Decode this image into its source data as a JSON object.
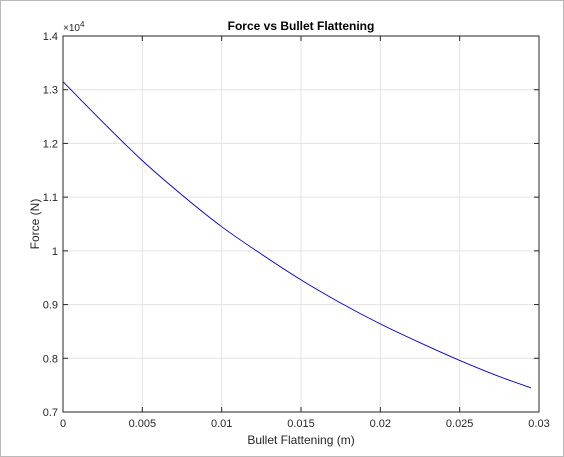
{
  "chart_data": {
    "type": "line",
    "title": "Force vs Bullet Flattening",
    "xlabel": "Bullet Flattening (m)",
    "ylabel": "Force (N)",
    "y_multiplier_label": "×10⁴",
    "y_multiplier_base": "×10",
    "y_multiplier_exp": "4",
    "xlim": [
      0,
      0.03
    ],
    "ylim": [
      0.7,
      1.4
    ],
    "y_scale_factor": 10000,
    "grid": true,
    "line_color": "#0000cc",
    "x_ticks": [
      0,
      0.005,
      0.01,
      0.015,
      0.02,
      0.025,
      0.03
    ],
    "x_tick_labels": [
      "0",
      "0.005",
      "0.01",
      "0.015",
      "0.02",
      "0.025",
      "0.03"
    ],
    "y_ticks": [
      0.7,
      0.8,
      0.9,
      1.0,
      1.1,
      1.2,
      1.3,
      1.4
    ],
    "y_tick_labels": [
      "0.7",
      "0.8",
      "0.9",
      "1",
      "1.1",
      "1.2",
      "1.3",
      "1.4"
    ],
    "series": [
      {
        "x": [
          0,
          0.0025,
          0.005,
          0.0075,
          0.01,
          0.0125,
          0.015,
          0.0175,
          0.02,
          0.0225,
          0.025,
          0.0275,
          0.0295
        ],
        "y": [
          1.315,
          1.24,
          1.168,
          1.104,
          1.045,
          0.994,
          0.946,
          0.903,
          0.864,
          0.829,
          0.796,
          0.766,
          0.745
        ]
      }
    ]
  }
}
